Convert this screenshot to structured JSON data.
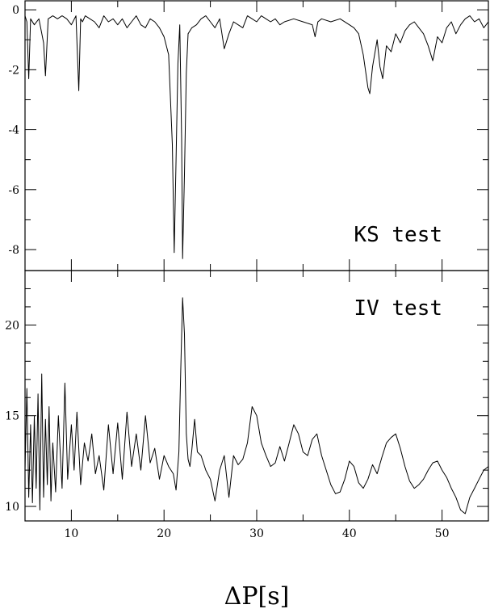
{
  "chart_data": [
    {
      "type": "line",
      "panel": "top",
      "label": "KS test",
      "xlim": [
        5,
        55
      ],
      "ylim": [
        -8.7,
        0.3
      ],
      "xticks": [
        10,
        20,
        30,
        40,
        50
      ],
      "yticks": [
        0,
        -2,
        -4,
        -6,
        -8
      ],
      "ytick_labels": [
        "0",
        "-2",
        "-4",
        "-6",
        "-8"
      ],
      "grid": false,
      "x": [
        5.0,
        5.2,
        5.4,
        5.6,
        6.0,
        6.5,
        7.0,
        7.2,
        7.5,
        8.0,
        8.5,
        9.0,
        9.5,
        10.0,
        10.5,
        10.8,
        11.0,
        11.2,
        11.5,
        12.0,
        12.5,
        13.0,
        13.5,
        14.0,
        14.5,
        15.0,
        15.5,
        16.0,
        16.5,
        17.0,
        17.5,
        18.0,
        18.5,
        19.0,
        19.5,
        20.0,
        20.5,
        20.9,
        21.1,
        21.3,
        21.5,
        21.7,
        21.9,
        22.0,
        22.2,
        22.4,
        22.6,
        22.8,
        23.0,
        23.5,
        24.0,
        24.5,
        25.0,
        25.5,
        26.0,
        26.5,
        27.0,
        27.5,
        28.0,
        28.5,
        29.0,
        29.5,
        30.0,
        30.5,
        31.0,
        31.5,
        32.0,
        32.5,
        33.0,
        34.0,
        35.0,
        36.0,
        36.3,
        36.6,
        37.0,
        38.0,
        39.0,
        40.0,
        40.5,
        41.0,
        41.5,
        42.0,
        42.2,
        42.5,
        43.0,
        43.3,
        43.6,
        44.0,
        44.5,
        45.0,
        45.5,
        46.0,
        46.5,
        47.0,
        47.5,
        48.0,
        48.5,
        49.0,
        49.5,
        50.0,
        50.5,
        51.0,
        51.5,
        52.0,
        52.5,
        53.0,
        53.5,
        54.0,
        54.5,
        55.0
      ],
      "y": [
        -0.2,
        -0.4,
        -2.3,
        -0.3,
        -0.5,
        -0.3,
        -1.1,
        -2.2,
        -0.3,
        -0.2,
        -0.3,
        -0.2,
        -0.3,
        -0.5,
        -0.2,
        -2.7,
        -0.3,
        -0.4,
        -0.2,
        -0.3,
        -0.4,
        -0.6,
        -0.2,
        -0.4,
        -0.3,
        -0.5,
        -0.3,
        -0.6,
        -0.4,
        -0.2,
        -0.5,
        -0.6,
        -0.3,
        -0.4,
        -0.6,
        -0.9,
        -1.5,
        -4.5,
        -8.1,
        -5.0,
        -1.8,
        -0.5,
        -4.3,
        -8.3,
        -5.5,
        -2.1,
        -0.8,
        -0.7,
        -0.6,
        -0.5,
        -0.3,
        -0.2,
        -0.4,
        -0.6,
        -0.3,
        -1.3,
        -0.8,
        -0.4,
        -0.5,
        -0.6,
        -0.2,
        -0.3,
        -0.4,
        -0.2,
        -0.3,
        -0.4,
        -0.3,
        -0.5,
        -0.4,
        -0.3,
        -0.4,
        -0.5,
        -0.9,
        -0.4,
        -0.3,
        -0.4,
        -0.3,
        -0.5,
        -0.6,
        -0.8,
        -1.5,
        -2.6,
        -2.8,
        -1.9,
        -1.0,
        -1.9,
        -2.3,
        -1.2,
        -1.4,
        -0.8,
        -1.1,
        -0.7,
        -0.5,
        -0.4,
        -0.6,
        -0.8,
        -1.2,
        -1.7,
        -0.9,
        -1.1,
        -0.6,
        -0.4,
        -0.8,
        -0.5,
        -0.3,
        -0.2,
        -0.4,
        -0.3,
        -0.6,
        -0.4
      ]
    },
    {
      "type": "line",
      "panel": "bottom",
      "label": "IV test",
      "xlim": [
        5,
        55
      ],
      "ylim": [
        9.2,
        23
      ],
      "xticks": [
        10,
        20,
        30,
        40,
        50
      ],
      "xtick_labels": [
        "10",
        "20",
        "30",
        "40",
        "50"
      ],
      "yticks": [
        10,
        15,
        20
      ],
      "ytick_labels": [
        "10",
        "15",
        "20"
      ],
      "grid": false,
      "xlabel": "ΔP[s]",
      "x": [
        5.0,
        5.2,
        5.4,
        5.6,
        5.8,
        6.0,
        6.2,
        6.4,
        6.6,
        6.8,
        7.0,
        7.2,
        7.4,
        7.6,
        7.8,
        8.0,
        8.3,
        8.6,
        9.0,
        9.3,
        9.6,
        10.0,
        10.3,
        10.6,
        11.0,
        11.4,
        11.8,
        12.2,
        12.6,
        13.0,
        13.5,
        14.0,
        14.5,
        15.0,
        15.5,
        16.0,
        16.5,
        17.0,
        17.5,
        18.0,
        18.5,
        19.0,
        19.5,
        20.0,
        20.5,
        21.0,
        21.3,
        21.6,
        21.8,
        22.0,
        22.2,
        22.4,
        22.6,
        22.8,
        23.0,
        23.3,
        23.6,
        24.0,
        24.5,
        25.0,
        25.5,
        26.0,
        26.5,
        27.0,
        27.5,
        28.0,
        28.5,
        29.0,
        29.5,
        30.0,
        30.5,
        31.0,
        31.5,
        32.0,
        32.5,
        33.0,
        33.5,
        34.0,
        34.5,
        35.0,
        35.5,
        36.0,
        36.5,
        37.0,
        37.5,
        38.0,
        38.5,
        39.0,
        39.5,
        40.0,
        40.5,
        41.0,
        41.5,
        42.0,
        42.5,
        43.0,
        43.5,
        44.0,
        44.5,
        45.0,
        45.5,
        46.0,
        46.5,
        47.0,
        47.5,
        48.0,
        48.5,
        49.0,
        49.5,
        50.0,
        50.5,
        51.0,
        51.5,
        52.0,
        52.5,
        53.0,
        53.5,
        54.0,
        54.5,
        55.0
      ],
      "y": [
        12.0,
        16.5,
        10.5,
        14.5,
        10.2,
        15.0,
        11.0,
        16.2,
        9.8,
        17.3,
        10.5,
        14.8,
        11.2,
        15.5,
        10.3,
        13.5,
        10.8,
        15.0,
        11.0,
        16.8,
        11.5,
        14.5,
        12.0,
        15.2,
        11.2,
        13.5,
        12.5,
        14.0,
        11.8,
        12.8,
        10.9,
        14.5,
        11.8,
        14.6,
        11.5,
        15.2,
        12.2,
        14.0,
        12.0,
        15.0,
        12.4,
        13.2,
        11.5,
        12.8,
        12.2,
        11.8,
        10.9,
        13.0,
        17.5,
        21.5,
        19.5,
        14.0,
        12.6,
        12.2,
        13.1,
        14.8,
        13.0,
        12.8,
        12.0,
        11.5,
        10.3,
        12.0,
        12.8,
        10.5,
        12.8,
        12.3,
        12.6,
        13.5,
        15.5,
        15.0,
        13.5,
        12.8,
        12.2,
        12.4,
        13.3,
        12.5,
        13.5,
        14.5,
        14.0,
        13.0,
        12.8,
        13.7,
        14.0,
        12.8,
        12.0,
        11.2,
        10.7,
        10.8,
        11.5,
        12.5,
        12.2,
        11.3,
        11.0,
        11.5,
        12.3,
        11.8,
        12.7,
        13.5,
        13.8,
        14.0,
        13.2,
        12.2,
        11.4,
        11.0,
        11.2,
        11.5,
        12.0,
        12.4,
        12.5,
        12.0,
        11.6,
        11.0,
        10.5,
        9.8,
        9.6,
        10.5,
        11.0,
        11.5,
        12.0,
        12.2
      ]
    }
  ]
}
